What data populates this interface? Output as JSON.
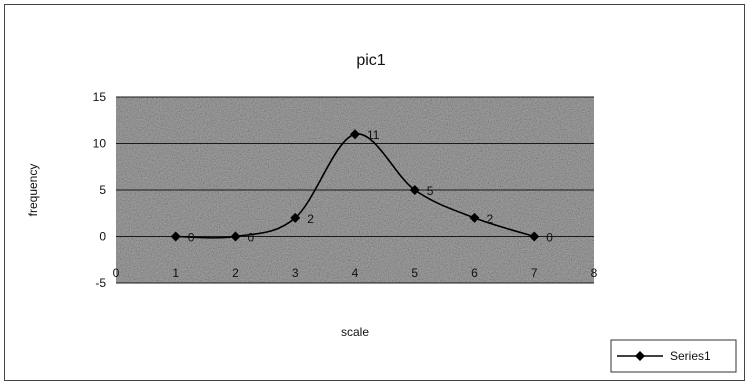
{
  "chart_data": {
    "type": "line",
    "title": "pic1",
    "xlabel": "scale",
    "ylabel": "frequency",
    "x": [
      1,
      2,
      3,
      4,
      5,
      6,
      7
    ],
    "x_ticks": [
      0,
      1,
      2,
      3,
      4,
      5,
      6,
      7,
      8
    ],
    "xlim": [
      0,
      8
    ],
    "ylim": [
      -5,
      15
    ],
    "y_ticks": [
      -5,
      0,
      5,
      10,
      15
    ],
    "grid": true,
    "smooth": true,
    "legend_position": "bottom-right",
    "series": [
      {
        "name": "Series1",
        "values": [
          0,
          0,
          2,
          11,
          5,
          2,
          0
        ],
        "data_labels": [
          "0",
          "0",
          "2",
          "11",
          "5",
          "2",
          "0"
        ],
        "marker": "diamond",
        "color": "#000000"
      }
    ],
    "plot_background": "#9a9a9a"
  }
}
